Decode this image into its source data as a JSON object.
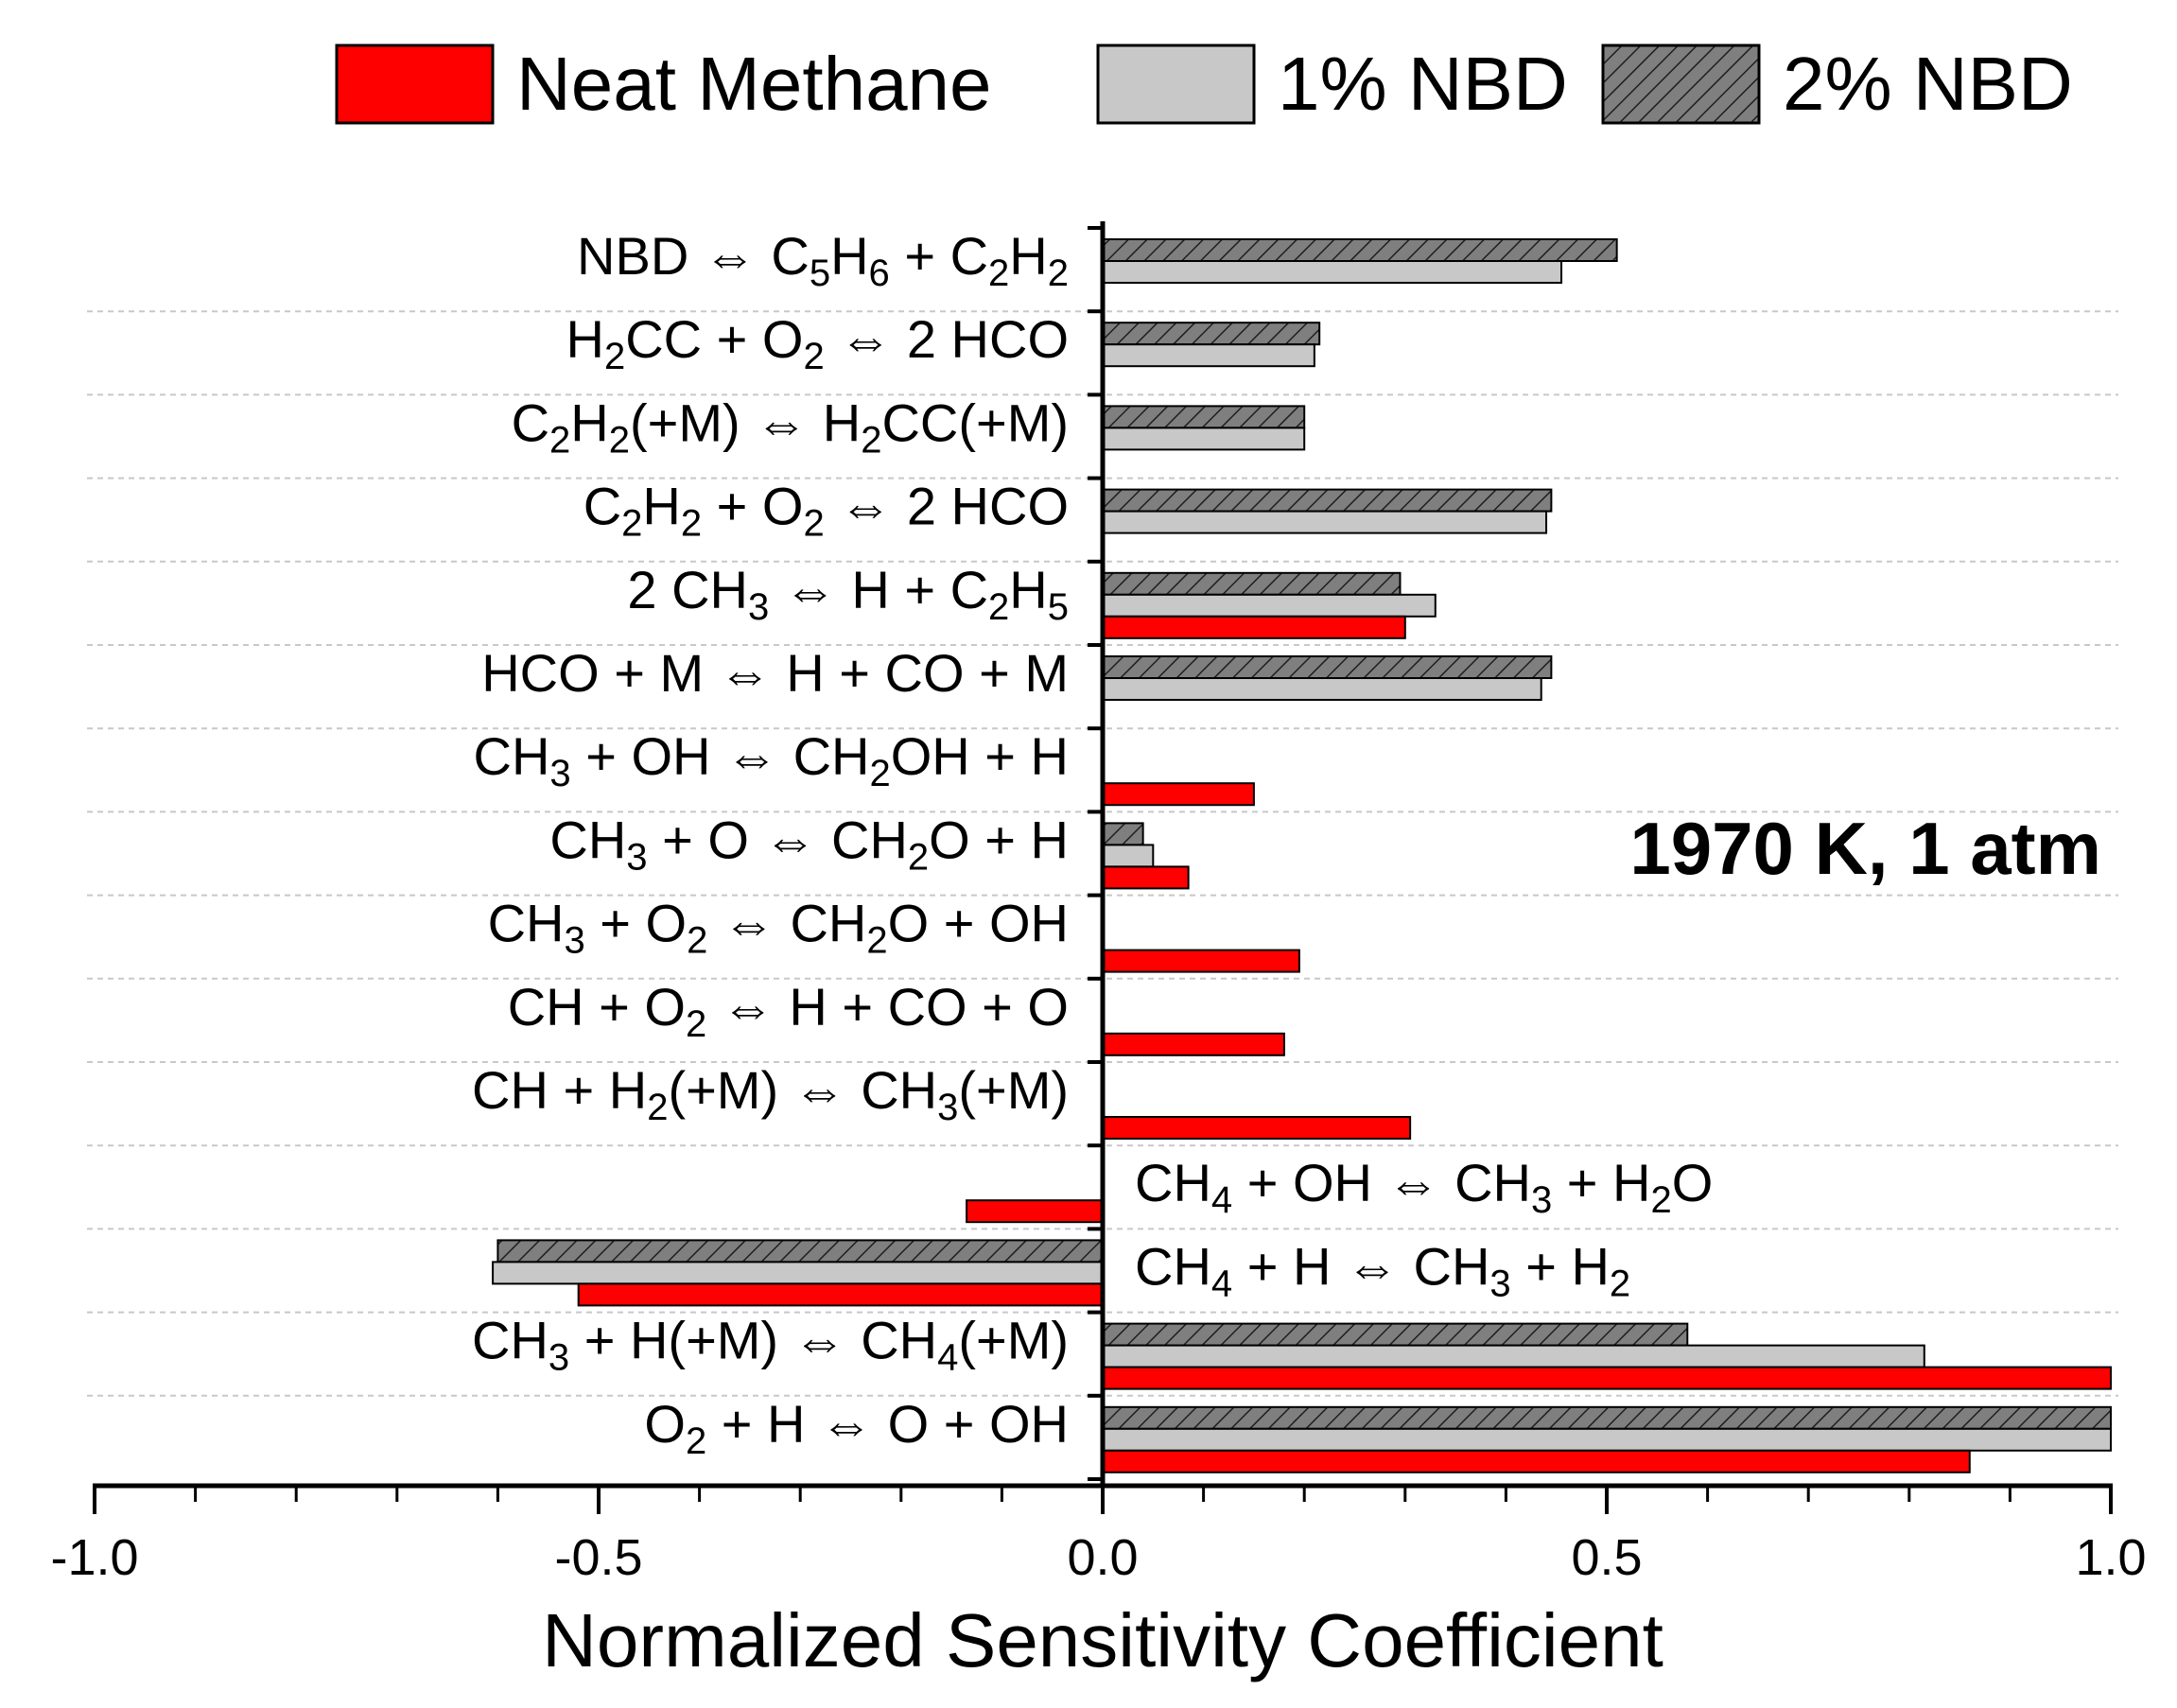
{
  "chart_data": {
    "type": "bar",
    "orientation": "horizontal",
    "xlabel": "Normalized Sensitivity Coefficient",
    "xlim": [
      -1.0,
      1.0
    ],
    "xticks": [
      "-1.0",
      "-0.5",
      "0.0",
      "0.5",
      "1.0"
    ],
    "annotation": "1970 K, 1 atm",
    "legend_position": "top",
    "categories": [
      {
        "rx": [
          [
            "NBD ⇔ C"
          ],
          [
            "5",
            "sub"
          ],
          [
            "H"
          ],
          [
            "6",
            "sub"
          ],
          [
            " + C"
          ],
          [
            "2",
            "sub"
          ],
          [
            "H"
          ],
          [
            "2",
            "sub"
          ]
        ],
        "side": "left"
      },
      {
        "rx": [
          [
            "H"
          ],
          [
            "2",
            "sub"
          ],
          [
            "CC + O"
          ],
          [
            "2",
            "sub"
          ],
          [
            " ⇔ 2 HCO"
          ]
        ],
        "side": "left"
      },
      {
        "rx": [
          [
            "C"
          ],
          [
            "2",
            "sub"
          ],
          [
            "H"
          ],
          [
            "2",
            "sub"
          ],
          [
            "(+M) ⇔ H"
          ],
          [
            "2",
            "sub"
          ],
          [
            "CC(+M)"
          ]
        ],
        "side": "left"
      },
      {
        "rx": [
          [
            "C"
          ],
          [
            "2",
            "sub"
          ],
          [
            "H"
          ],
          [
            "2",
            "sub"
          ],
          [
            " + O"
          ],
          [
            "2",
            "sub"
          ],
          [
            " ⇔ 2 HCO"
          ]
        ],
        "side": "left"
      },
      {
        "rx": [
          [
            "2 CH"
          ],
          [
            "3",
            "sub"
          ],
          [
            " ⇔ H + C"
          ],
          [
            "2",
            "sub"
          ],
          [
            "H"
          ],
          [
            "5",
            "sub"
          ]
        ],
        "side": "left"
      },
      {
        "rx": [
          [
            "HCO + M ⇔ H + CO + M"
          ]
        ],
        "side": "left"
      },
      {
        "rx": [
          [
            "CH"
          ],
          [
            "3",
            "sub"
          ],
          [
            " + OH ⇔ CH"
          ],
          [
            "2",
            "sub"
          ],
          [
            "OH + H"
          ]
        ],
        "side": "left"
      },
      {
        "rx": [
          [
            "CH"
          ],
          [
            "3",
            "sub"
          ],
          [
            " + O ⇔ CH"
          ],
          [
            "2",
            "sub"
          ],
          [
            "O + H"
          ]
        ],
        "side": "left"
      },
      {
        "rx": [
          [
            "CH"
          ],
          [
            "3",
            "sub"
          ],
          [
            " + O"
          ],
          [
            "2",
            "sub"
          ],
          [
            " ⇔ CH"
          ],
          [
            "2",
            "sub"
          ],
          [
            "O + OH"
          ]
        ],
        "side": "left"
      },
      {
        "rx": [
          [
            "CH + O"
          ],
          [
            "2",
            "sub"
          ],
          [
            " ⇔ H + CO + O"
          ]
        ],
        "side": "left"
      },
      {
        "rx": [
          [
            "CH + H"
          ],
          [
            "2",
            "sub"
          ],
          [
            "(+M) ⇔ CH"
          ],
          [
            "3",
            "sub"
          ],
          [
            "(+M)"
          ]
        ],
        "side": "left"
      },
      {
        "rx": [
          [
            "CH"
          ],
          [
            "4",
            "sub"
          ],
          [
            " + OH ⇔ CH"
          ],
          [
            "3",
            "sub"
          ],
          [
            " + H"
          ],
          [
            "2",
            "sub"
          ],
          [
            "O"
          ]
        ],
        "side": "right"
      },
      {
        "rx": [
          [
            "CH"
          ],
          [
            "4",
            "sub"
          ],
          [
            " + H ⇔ CH"
          ],
          [
            "3",
            "sub"
          ],
          [
            " + H"
          ],
          [
            "2",
            "sub"
          ]
        ],
        "side": "right"
      },
      {
        "rx": [
          [
            "CH"
          ],
          [
            "3",
            "sub"
          ],
          [
            " + H(+M) ⇔ CH"
          ],
          [
            "4",
            "sub"
          ],
          [
            "(+M)"
          ]
        ],
        "side": "left"
      },
      {
        "rx": [
          [
            "O"
          ],
          [
            "2",
            "sub"
          ],
          [
            " + H ⇔ O + OH"
          ]
        ],
        "side": "left"
      }
    ],
    "series": [
      {
        "name": "Neat Methane",
        "color": "#ff0000",
        "pattern": "solid",
        "values": [
          0,
          0,
          0,
          0,
          0.3,
          0,
          0.15,
          0.085,
          0.195,
          0.18,
          0.305,
          -0.135,
          -0.52,
          1.0,
          0.86
        ]
      },
      {
        "name": "1% NBD",
        "color": "#c8c8c8",
        "pattern": "solid",
        "values": [
          0.455,
          0.21,
          0.2,
          0.44,
          0.33,
          0.435,
          0,
          0.05,
          0,
          0,
          0,
          0,
          -0.605,
          0.815,
          1.0
        ]
      },
      {
        "name": "2% NBD",
        "color": "#7f7f7f",
        "pattern": "hatched",
        "values": [
          0.51,
          0.215,
          0.2,
          0.445,
          0.295,
          0.445,
          0,
          0.04,
          0,
          0,
          0,
          0,
          -0.6,
          0.58,
          1.0
        ]
      }
    ]
  }
}
